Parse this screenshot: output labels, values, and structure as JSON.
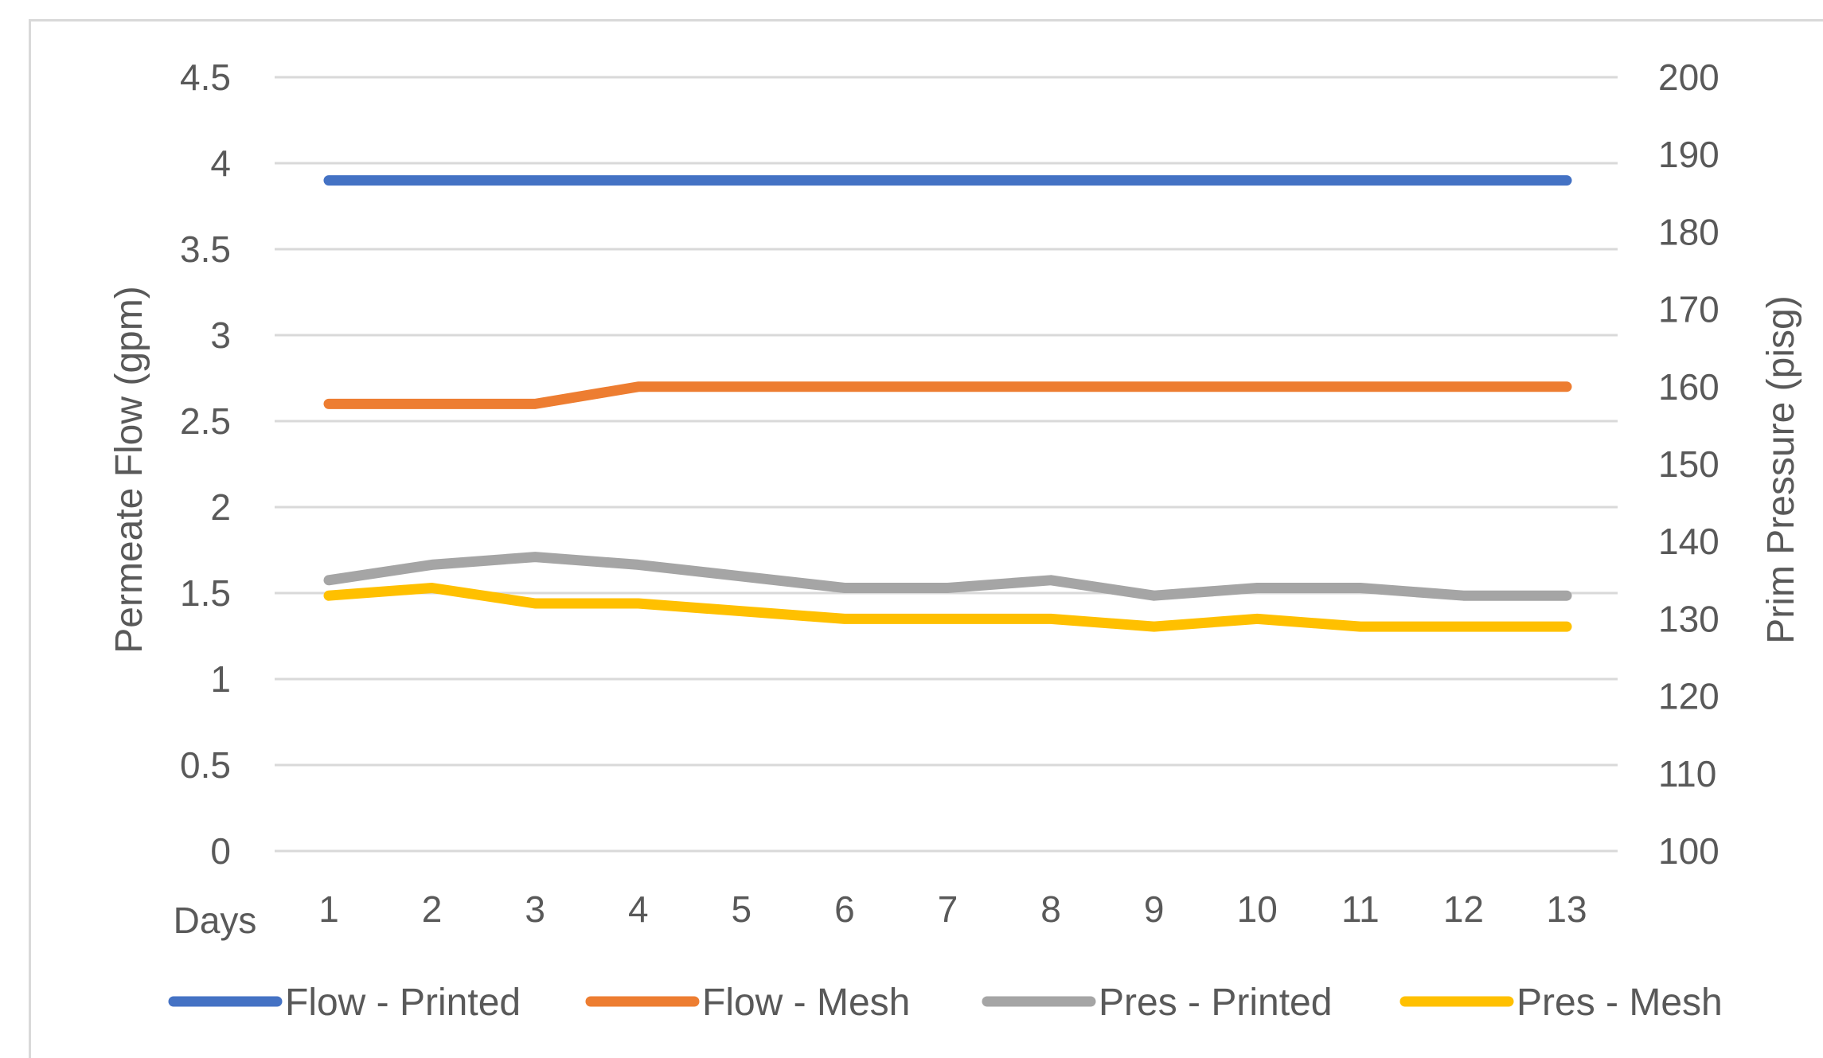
{
  "chart_data": {
    "type": "line",
    "xlabel": "Days",
    "ylabel_left": "Permeate Flow (gpm)",
    "ylabel_right": "Prim Pressure (pisg)",
    "categories": [
      "1",
      "2",
      "3",
      "4",
      "5",
      "6",
      "7",
      "8",
      "9",
      "10",
      "11",
      "12",
      "13"
    ],
    "y_left_range": [
      0,
      4.5
    ],
    "y_left_ticks": [
      "0",
      "0.5",
      "1",
      "1.5",
      "2",
      "2.5",
      "3",
      "3.5",
      "4",
      "4.5"
    ],
    "y_right_range": [
      100,
      200
    ],
    "y_right_ticks": [
      "100",
      "110",
      "120",
      "130",
      "140",
      "150",
      "160",
      "170",
      "180",
      "190",
      "200"
    ],
    "grid": true,
    "legend_position": "bottom",
    "series": [
      {
        "name": "Flow - Printed",
        "axis": "left",
        "color": "#4472C4",
        "values": [
          3.9,
          3.9,
          3.9,
          3.9,
          3.9,
          3.9,
          3.9,
          3.9,
          3.9,
          3.9,
          3.9,
          3.9,
          3.9
        ]
      },
      {
        "name": "Flow - Mesh",
        "axis": "left",
        "color": "#ED7D31",
        "values": [
          2.6,
          2.6,
          2.6,
          2.7,
          2.7,
          2.7,
          2.7,
          2.7,
          2.7,
          2.7,
          2.7,
          2.7,
          2.7
        ]
      },
      {
        "name": "Pres - Printed",
        "axis": "right",
        "color": "#A5A5A5",
        "values": [
          135,
          137,
          138,
          137,
          135.5,
          134,
          134,
          135,
          133,
          134,
          134,
          133,
          133
        ]
      },
      {
        "name": "Pres - Mesh",
        "axis": "right",
        "color": "#FFC000",
        "values": [
          133,
          134,
          132,
          132,
          131,
          130,
          130,
          130,
          129,
          130,
          129,
          129,
          129
        ]
      }
    ]
  }
}
